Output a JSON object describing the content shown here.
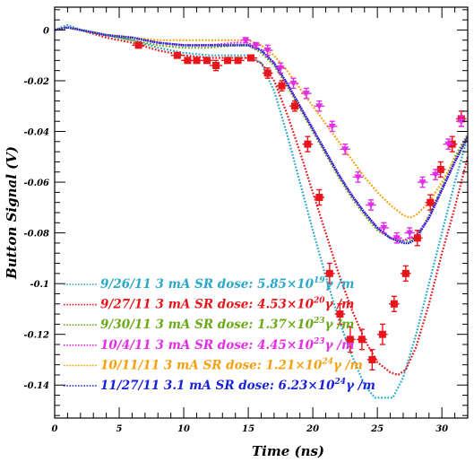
{
  "chart_data": {
    "type": "line",
    "xlabel": "Time (ns)",
    "ylabel": "Button Signal (V)",
    "xlim": [
      0,
      32
    ],
    "ylim": [
      -0.153,
      0.009
    ],
    "xticks": [
      0,
      5,
      10,
      15,
      20,
      25,
      30
    ],
    "xtick_labels": [
      "0",
      "5",
      "10",
      "15",
      "20",
      "25",
      "30"
    ],
    "yticks": [
      0,
      -0.02,
      -0.04,
      -0.06,
      -0.08,
      -0.1,
      -0.12,
      -0.14
    ],
    "ytick_labels": [
      "0",
      "-0.02",
      "-0.04",
      "-0.06",
      "-0.08",
      "-0.1",
      "-0.12",
      "-0.14"
    ],
    "grid": false,
    "legend_position": "bottom-left",
    "series": [
      {
        "name": "9/26/11 3 mA  SR dose: 5.85×10^19 γ /m",
        "legend": {
          "pre": "9/26/11 3 mA  SR dose: 5.85×10",
          "sup": "19",
          "post": "γ /m"
        },
        "color": "#2aa8c8",
        "style": "dotted",
        "x": [
          0,
          1,
          2,
          4,
          6,
          8,
          10,
          12,
          14,
          15,
          16,
          17,
          18,
          19,
          20,
          21,
          22,
          23,
          24,
          24.8,
          25.5,
          26.2,
          27,
          28,
          29,
          30,
          31,
          32
        ],
        "y": [
          0,
          0.002,
          0,
          -0.002,
          -0.004,
          -0.007,
          -0.009,
          -0.01,
          -0.01,
          -0.01,
          -0.013,
          -0.024,
          -0.041,
          -0.06,
          -0.079,
          -0.097,
          -0.114,
          -0.128,
          -0.14,
          -0.145,
          -0.145,
          -0.145,
          -0.137,
          -0.12,
          -0.1,
          -0.08,
          -0.06,
          -0.042
        ]
      },
      {
        "name": "9/27/11 3 mA  SR dose: 4.53×10^20 γ /m",
        "legend": {
          "pre": "9/27/11 3 mA  SR dose: 4.53×10",
          "sup": "20",
          "post": "γ /m"
        },
        "color": "#e8161c",
        "style": "dotted",
        "x": [
          0,
          1,
          2,
          4,
          6,
          8,
          10,
          12,
          14,
          15,
          16,
          17,
          18,
          19,
          20,
          21,
          22,
          23,
          24,
          25,
          26,
          26.6,
          27.2,
          28,
          29,
          30,
          31,
          32
        ],
        "y": [
          0,
          0.001,
          0,
          -0.003,
          -0.005,
          -0.008,
          -0.01,
          -0.011,
          -0.011,
          -0.011,
          -0.013,
          -0.02,
          -0.033,
          -0.048,
          -0.064,
          -0.08,
          -0.096,
          -0.11,
          -0.122,
          -0.131,
          -0.135,
          -0.136,
          -0.134,
          -0.125,
          -0.108,
          -0.088,
          -0.07,
          -0.05
        ]
      },
      {
        "name": "9/30/11 3 mA  SR dose: 1.37×10^23 γ /m",
        "legend": {
          "pre": "9/30/11 3 mA  SR dose: 1.37×10",
          "sup": "23",
          "post": "γ /m"
        },
        "color": "#6aaa18",
        "style": "dotted",
        "x": [
          0,
          1,
          2,
          4,
          6,
          8,
          10,
          12,
          14,
          15,
          16,
          17,
          18,
          19,
          20,
          21,
          22,
          23,
          24,
          25,
          26,
          26.8,
          27.5,
          28.3,
          29,
          30,
          31,
          32
        ],
        "y": [
          0,
          0.001,
          0,
          -0.002,
          -0.004,
          -0.006,
          -0.007,
          -0.007,
          -0.006,
          -0.006,
          -0.009,
          -0.014,
          -0.022,
          -0.031,
          -0.04,
          -0.049,
          -0.058,
          -0.066,
          -0.073,
          -0.079,
          -0.082,
          -0.083,
          -0.083,
          -0.08,
          -0.073,
          -0.062,
          -0.05,
          -0.041
        ]
      },
      {
        "name": "10/4/11 3 mA  SR dose: 4.45×10^23 γ /m",
        "legend": {
          "pre": "10/4/11 3 mA  SR dose: 4.45×10",
          "sup": "23",
          "post": "γ /m"
        },
        "color": "#e42ce8",
        "style": "dotted",
        "x": [
          0,
          1,
          2,
          4,
          6,
          8,
          10,
          12,
          14,
          15,
          16,
          17,
          18,
          19,
          20,
          21,
          22,
          23,
          24,
          25,
          26,
          27,
          28,
          29,
          30,
          31,
          32
        ],
        "y": [
          0,
          0.001,
          0,
          -0.002,
          -0.003,
          -0.005,
          -0.006,
          -0.006,
          -0.005,
          -0.005,
          -0.008,
          -0.013,
          -0.021,
          -0.03,
          -0.039,
          -0.048,
          -0.057,
          -0.065,
          -0.072,
          -0.078,
          -0.082,
          -0.083,
          -0.081,
          -0.074,
          -0.063,
          -0.052,
          -0.042
        ]
      },
      {
        "name": "10/11/11 3 mA  SR dose: 1.21×10^24 γ /m",
        "legend": {
          "pre": "10/11/11 3 mA  SR dose: 1.21×10",
          "sup": "24",
          "post": "γ /m"
        },
        "color": "#f5a00c",
        "style": "dotted",
        "x": [
          0,
          1,
          2,
          4,
          6,
          8,
          10,
          12,
          14,
          15,
          16,
          17,
          18,
          19,
          20,
          21,
          22,
          23,
          24,
          25,
          26,
          27,
          27.5,
          28,
          29,
          30,
          31,
          32
        ],
        "y": [
          0,
          0.001,
          0,
          -0.002,
          -0.003,
          -0.004,
          -0.004,
          -0.004,
          -0.004,
          -0.004,
          -0.006,
          -0.01,
          -0.016,
          -0.023,
          -0.03,
          -0.037,
          -0.044,
          -0.051,
          -0.058,
          -0.064,
          -0.069,
          -0.073,
          -0.074,
          -0.073,
          -0.068,
          -0.06,
          -0.051,
          -0.043
        ]
      },
      {
        "name": "11/27/11 3.1 mA  SR dose: 6.23×10^24 γ /m",
        "legend": {
          "pre": "11/27/11 3.1 mA  SR dose: 6.23×10",
          "sup": "24",
          "post": "γ /m"
        },
        "color": "#1a22d8",
        "style": "dotted",
        "x": [
          0,
          1,
          2,
          4,
          6,
          8,
          10,
          12,
          14,
          15,
          16,
          17,
          18,
          19,
          20,
          21,
          22,
          23,
          24,
          25,
          26,
          27,
          27.5,
          28,
          29,
          30,
          31,
          32
        ],
        "y": [
          0,
          0.001,
          0,
          -0.002,
          -0.003,
          -0.005,
          -0.006,
          -0.006,
          -0.006,
          -0.006,
          -0.008,
          -0.013,
          -0.021,
          -0.03,
          -0.039,
          -0.048,
          -0.057,
          -0.065,
          -0.072,
          -0.078,
          -0.082,
          -0.084,
          -0.084,
          -0.082,
          -0.074,
          -0.063,
          -0.052,
          -0.042
        ]
      }
    ],
    "markers": [
      {
        "name": "9/27/11 3 mA  SR dose: 4.53×10^20 γ /m",
        "color": "#e8161c",
        "shape": "square",
        "x": [
          6.5,
          9.5,
          10.3,
          11,
          11.8,
          12.5,
          13.4,
          14.2,
          15.2,
          16.5,
          17.6,
          18.6,
          19.6,
          20.5,
          21.3,
          22.1,
          22.9,
          23.8,
          24.6,
          25.4,
          26.3,
          27.2,
          28.1,
          29.1,
          29.9,
          30.8,
          31.5
        ],
        "y": [
          -0.006,
          -0.01,
          -0.012,
          -0.012,
          -0.012,
          -0.014,
          -0.012,
          -0.012,
          -0.011,
          -0.017,
          -0.022,
          -0.03,
          -0.045,
          -0.066,
          -0.096,
          -0.112,
          -0.122,
          -0.122,
          -0.13,
          -0.12,
          -0.108,
          -0.096,
          -0.082,
          -0.068,
          -0.055,
          -0.045,
          -0.035
        ],
        "err": [
          0.001,
          0.001,
          0.001,
          0.001,
          0.001,
          0.002,
          0.001,
          0.001,
          0.001,
          0.002,
          0.002,
          0.002,
          0.003,
          0.003,
          0.004,
          0.004,
          0.005,
          0.004,
          0.004,
          0.004,
          0.003,
          0.003,
          0.003,
          0.003,
          0.003,
          0.003,
          0.003
        ],
        "xerr": [
          0.5,
          0.5,
          0.5,
          0.5,
          0.5,
          0.5,
          0.5,
          0.5,
          0.5,
          0.4,
          0.4,
          0.4,
          0.4,
          0.4,
          0.4,
          0.4,
          0.4,
          0.4,
          0.4,
          0.4,
          0.4,
          0.4,
          0.4,
          0.4,
          0.4,
          0.4,
          0.4
        ]
      },
      {
        "name": "10/4/11 3 mA  SR dose: 4.45×10^23 γ /m",
        "color": "#e42ce8",
        "shape": "triangle-down",
        "x": [
          14.8,
          15.6,
          16.5,
          17.5,
          18.5,
          19.5,
          20.5,
          21.5,
          22.5,
          23.5,
          24.5,
          25.5,
          26.5,
          27.5,
          28.5,
          29.5,
          30.5,
          31.5
        ],
        "y": [
          -0.004,
          -0.006,
          -0.008,
          -0.015,
          -0.021,
          -0.025,
          -0.03,
          -0.038,
          -0.047,
          -0.058,
          -0.069,
          -0.078,
          -0.082,
          -0.08,
          -0.06,
          -0.057,
          -0.045,
          -0.036
        ],
        "err": [
          0.001,
          0.001,
          0.002,
          0.002,
          0.002,
          0.002,
          0.002,
          0.002,
          0.002,
          0.002,
          0.002,
          0.002,
          0.002,
          0.002,
          0.002,
          0.002,
          0.002,
          0.002
        ],
        "xerr": [
          0.4,
          0.4,
          0.4,
          0.4,
          0.4,
          0.4,
          0.4,
          0.4,
          0.4,
          0.4,
          0.4,
          0.4,
          0.4,
          0.4,
          0.4,
          0.4,
          0.4,
          0.4
        ]
      }
    ]
  }
}
